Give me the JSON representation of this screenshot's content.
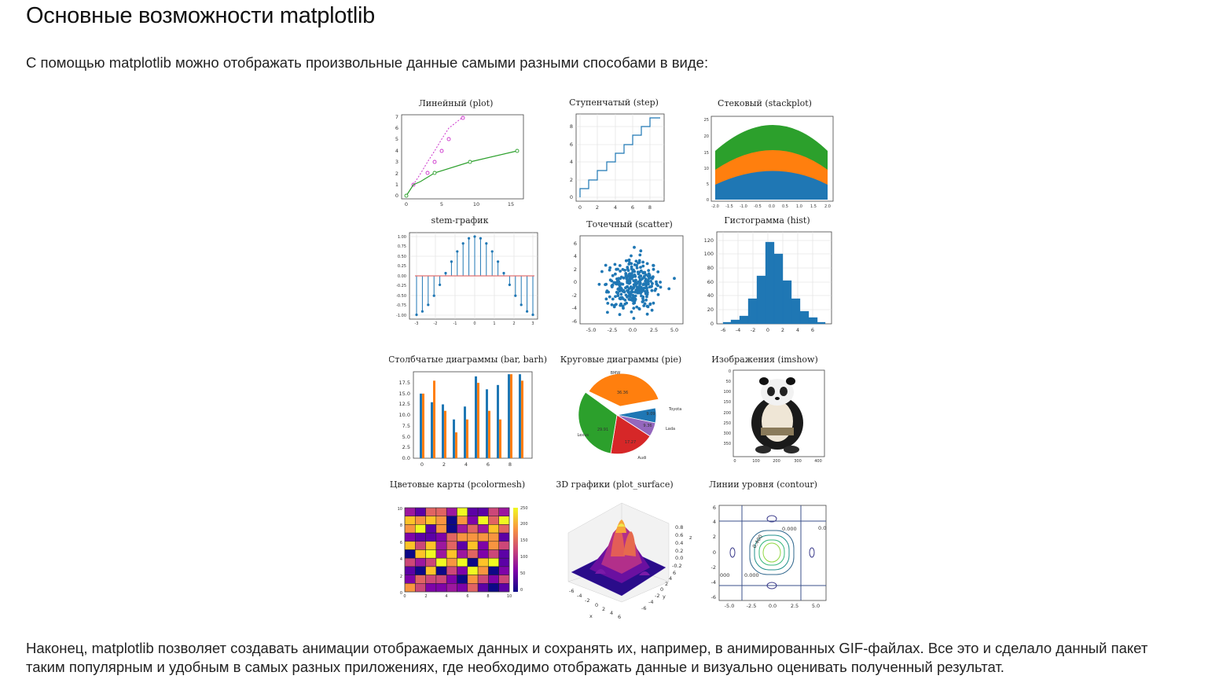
{
  "page": {
    "title": "Основные возможности matplotlib",
    "intro": "С помощью matplotlib можно отображать произвольные данные самыми разными способами в виде:",
    "outro": "Наконец, matplotlib позволяет создавать анимации отображаемых данных и сохранять их, например, в анимированных GIF-файлах. Все это и сделало данный пакет таким популярным и удобным в самых разных приложениях, где необходимо отображать данные и визуально оценивать полученный результат."
  },
  "figure": {
    "panels": {
      "plot": {
        "title": "Линейный (plot)",
        "xticks": [
          "0",
          "5",
          "10",
          "15"
        ],
        "yticks": [
          "0",
          "1",
          "2",
          "3",
          "4",
          "5",
          "6",
          "7"
        ]
      },
      "step": {
        "title": "Ступенчатый (step)",
        "xticks": [
          "0",
          "2",
          "4",
          "6",
          "8"
        ],
        "yticks": [
          "0",
          "2",
          "4",
          "6",
          "8"
        ]
      },
      "stackplot": {
        "title": "Стековый (stackplot)",
        "xticks": [
          "-2.0",
          "-1.5",
          "-1.0",
          "-0.5",
          "0.0",
          "0.5",
          "1.0",
          "1.5",
          "2.0"
        ],
        "yticks": [
          "0",
          "5",
          "10",
          "15",
          "20",
          "25"
        ]
      },
      "stem": {
        "title": "stem-график",
        "xticks": [
          "-3",
          "-2",
          "-1",
          "0",
          "1",
          "2",
          "3"
        ],
        "yticks": [
          "-1.00",
          "-0.75",
          "-0.50",
          "-0.25",
          "0.00",
          "0.25",
          "0.50",
          "0.75",
          "1.00"
        ]
      },
      "scatter": {
        "title": "Точечный (scatter)",
        "xticks": [
          "-5.0",
          "-2.5",
          "0.0",
          "2.5",
          "5.0"
        ],
        "yticks": [
          "-6",
          "-4",
          "-2",
          "0",
          "2",
          "4",
          "6"
        ]
      },
      "hist": {
        "title": "Гистограмма (hist)",
        "xticks": [
          "-6",
          "-4",
          "-2",
          "0",
          "2",
          "4",
          "6"
        ],
        "yticks": [
          "0",
          "20",
          "40",
          "60",
          "80",
          "100",
          "120"
        ]
      },
      "bar": {
        "title": "Столбчатые диаграммы (bar, barh)",
        "xticks": [
          "0",
          "2",
          "4",
          "6",
          "8"
        ],
        "yticks": [
          "0.0",
          "2.5",
          "5.0",
          "7.5",
          "10.0",
          "12.5",
          "15.0",
          "17.5"
        ]
      },
      "pie": {
        "title": "Круговые диаграммы (pie)",
        "labels": [
          "BMW",
          "Toyota",
          "Lada",
          "Audi",
          "Lexus"
        ],
        "pcts": [
          "36.36",
          "9.09",
          "9.36",
          "17.27",
          "29.91"
        ]
      },
      "imshow": {
        "title": "Изображения (imshow)",
        "xticks": [
          "0",
          "100",
          "200",
          "300",
          "400"
        ],
        "yticks": [
          "0",
          "50",
          "100",
          "150",
          "200",
          "250",
          "300",
          "350"
        ]
      },
      "pcolormesh": {
        "title": "Цветовые карты (pcolormesh)",
        "xticks": [
          "0",
          "2",
          "4",
          "6",
          "8",
          "10"
        ],
        "yticks": [
          "0",
          "2",
          "4",
          "6",
          "8",
          "10"
        ],
        "cbticks": [
          "0",
          "50",
          "100",
          "150",
          "200",
          "250"
        ]
      },
      "surface": {
        "title": "3D графики (plot_surface)",
        "xlabel": "x",
        "ylabel": "y",
        "zlabel": "z",
        "zticks": [
          "0.8",
          "0.6",
          "0.4",
          "0.2",
          "0.0",
          "-0.2"
        ],
        "xticks": [
          "-6",
          "-4",
          "-2",
          "0",
          "2",
          "4",
          "6"
        ],
        "yticks": [
          "-6",
          "-4",
          "-2",
          "0",
          "2",
          "4",
          "6"
        ]
      },
      "contour": {
        "title": "Линии уровня (contour)",
        "xticks": [
          "-5.0",
          "-2.5",
          "0.0",
          "2.5",
          "5.0"
        ],
        "yticks": [
          "6",
          "4",
          "2",
          "0",
          "-2",
          "-4",
          "-6"
        ],
        "levels": [
          "0.000",
          "0.0",
          "000",
          "0.000",
          "0.400"
        ]
      }
    },
    "colors": {
      "plot_green": "#2ca02c",
      "plot_magenta": "#cc33cc",
      "blue": "#1f77b4",
      "orange": "#ff7f0e",
      "green": "#2ca02c",
      "red": "#d62728",
      "purple": "#9467bd",
      "stem_base": "#e07070"
    }
  }
}
